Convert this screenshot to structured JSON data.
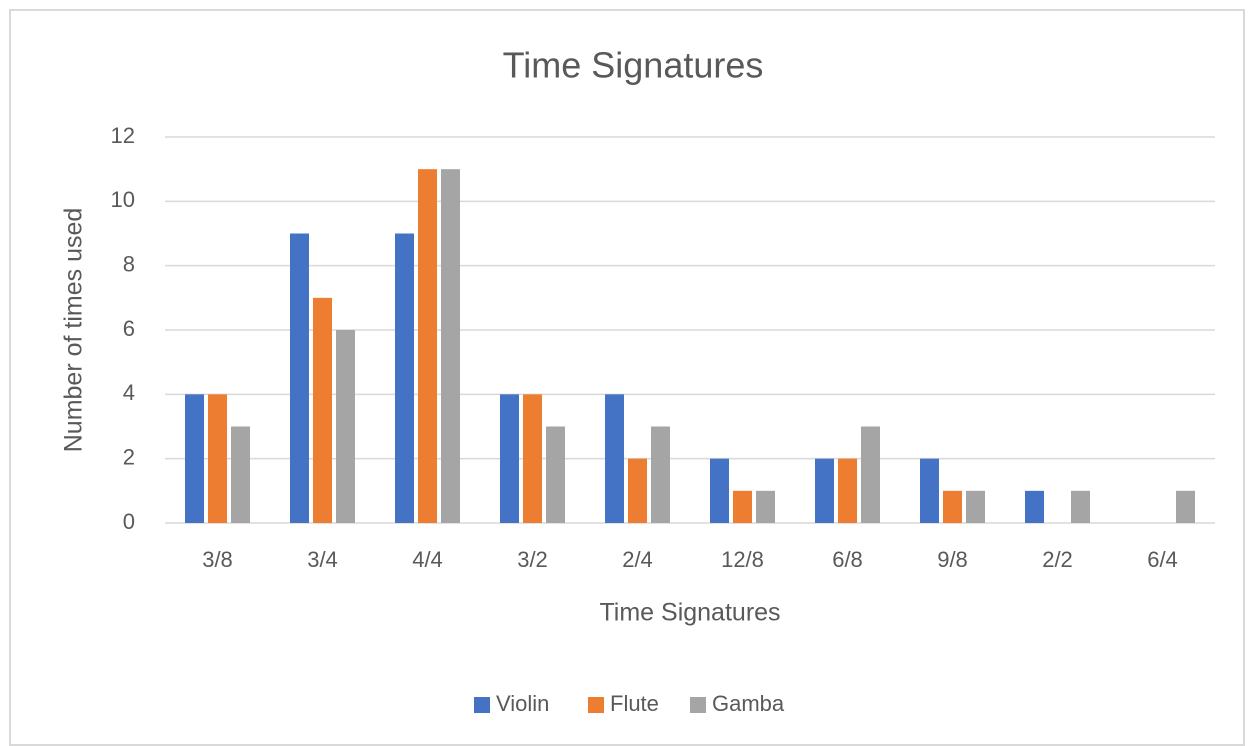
{
  "chart_data": {
    "type": "bar",
    "title": "Time Signatures",
    "x_label": "Time Signatures",
    "y_label": "Number of times used",
    "categories": [
      "3/8",
      "3/4",
      "4/4",
      "3/2",
      "2/4",
      "12/8",
      "6/8",
      "9/8",
      "2/2",
      "6/4"
    ],
    "series": [
      {
        "name": "Violin",
        "color": "#4472c4",
        "values": [
          4,
          9,
          9,
          4,
          4,
          2,
          2,
          2,
          1,
          0
        ]
      },
      {
        "name": "Flute",
        "color": "#ed7d31",
        "values": [
          4,
          7,
          11,
          4,
          2,
          1,
          2,
          1,
          0,
          0
        ]
      },
      {
        "name": "Gamba",
        "color": "#a5a5a5",
        "values": [
          3,
          6,
          11,
          3,
          3,
          1,
          3,
          1,
          1,
          1
        ]
      }
    ],
    "ylim": [
      0,
      12
    ],
    "yticks": [
      0,
      2,
      4,
      6,
      8,
      10,
      12
    ],
    "grid": true,
    "legend": "bottom"
  }
}
